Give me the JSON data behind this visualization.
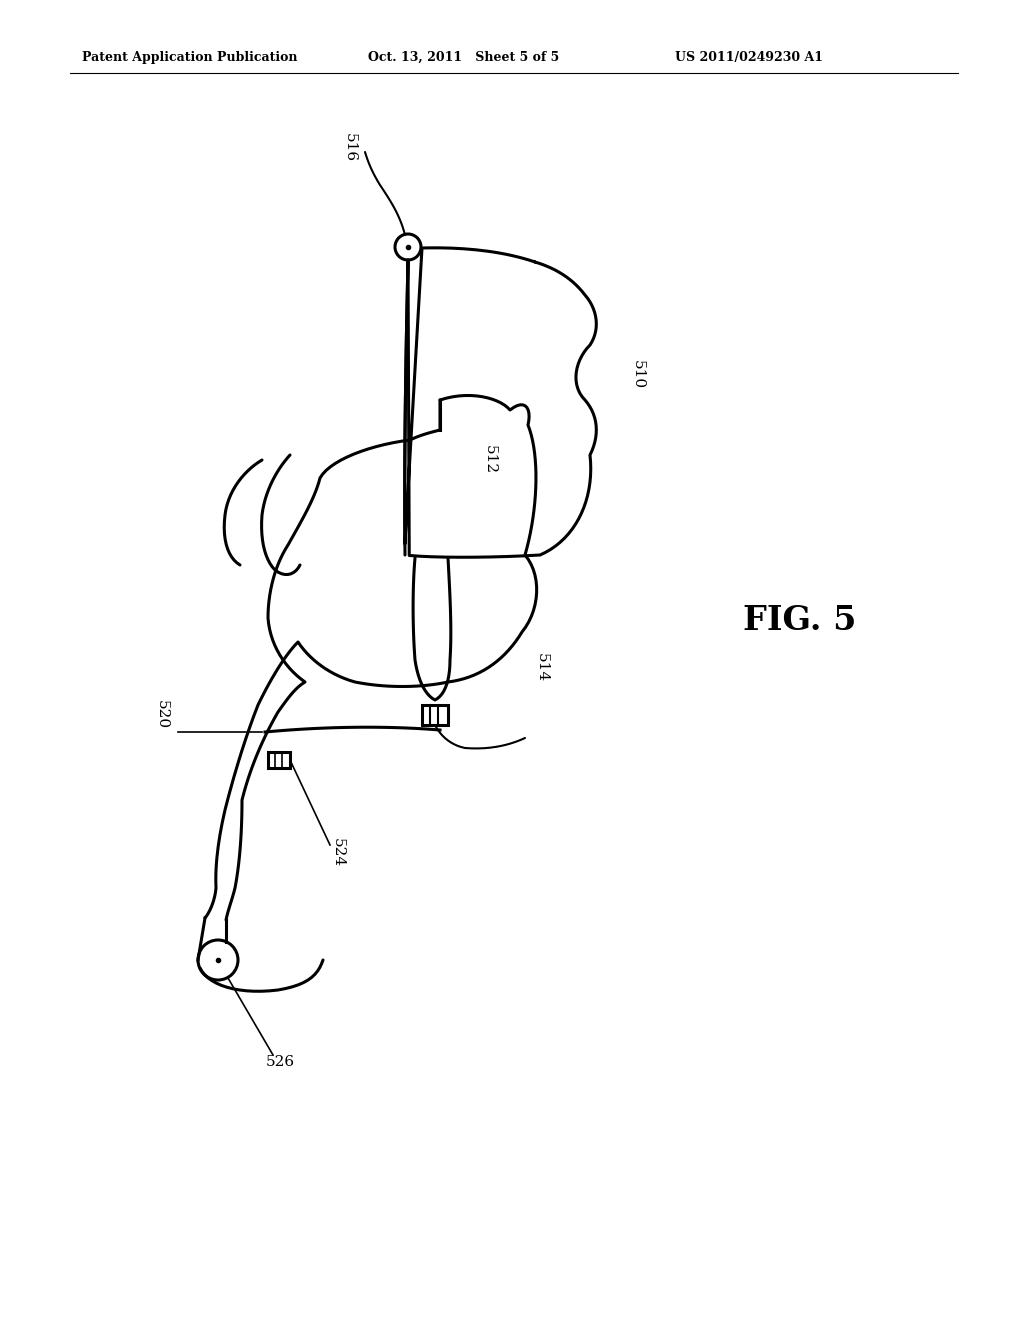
{
  "bg_color": "#ffffff",
  "line_color": "#000000",
  "lw": 2.2,
  "header_left": "Patent Application Publication",
  "header_mid": "Oct. 13, 2011   Sheet 5 of 5",
  "header_right": "US 2011/0249230 A1"
}
